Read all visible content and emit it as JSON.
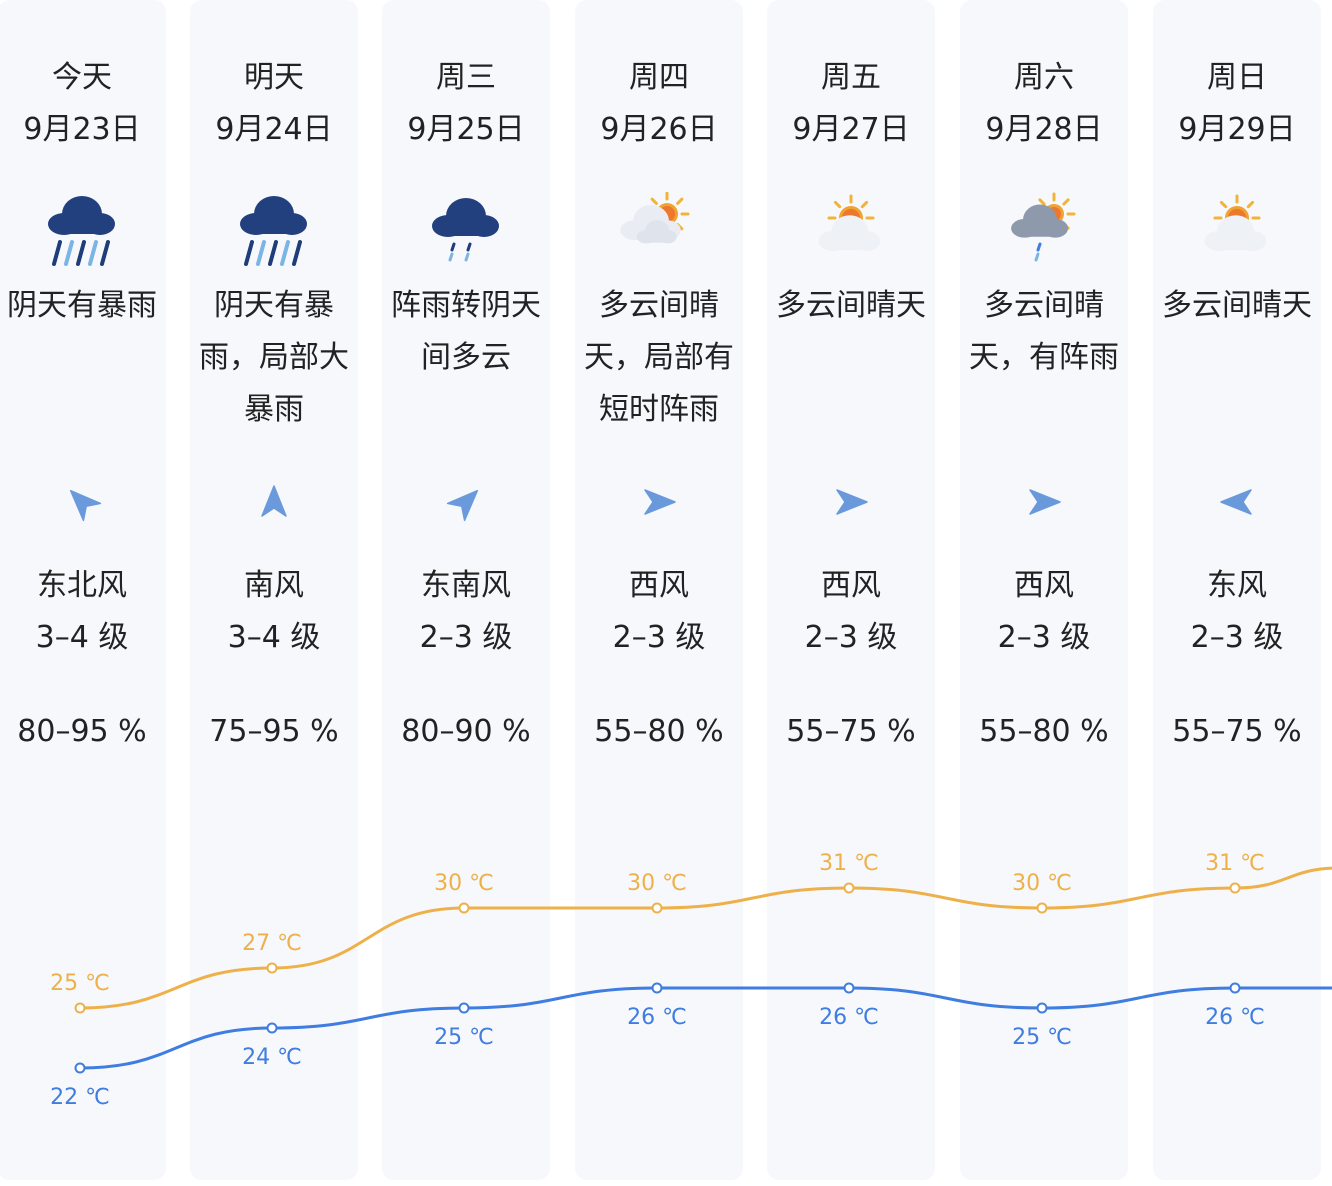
{
  "colors": {
    "high": "#eeb14a",
    "low": "#3f7de0",
    "card": "#f6f8fc",
    "arrow": "#5b8fd8"
  },
  "days": [
    {
      "weekday": "今天",
      "date": "9月23日",
      "icon": "heavy-rain-icon",
      "desc": "阴天有暴雨",
      "wind_dir": "东北风",
      "wind_level": "3–4 级",
      "humidity": "80–95 %",
      "arrow_rotation_deg": 225
    },
    {
      "weekday": "明天",
      "date": "9月24日",
      "icon": "heavy-rain-icon",
      "desc": "阴天有暴雨，局部大暴雨",
      "wind_dir": "南风",
      "wind_level": "3–4 级",
      "humidity": "75–95 %",
      "arrow_rotation_deg": 270
    },
    {
      "weekday": "周三",
      "date": "9月25日",
      "icon": "shower-icon",
      "desc": "阵雨转阴天间多云",
      "wind_dir": "东南风",
      "wind_level": "2–3 级",
      "humidity": "80–90 %",
      "arrow_rotation_deg": 315
    },
    {
      "weekday": "周四",
      "date": "9月26日",
      "icon": "partly-cloudy-icon",
      "desc": "多云间晴天，局部有短时阵雨",
      "wind_dir": "西风",
      "wind_level": "2–3 级",
      "humidity": "55–80 %",
      "arrow_rotation_deg": 0
    },
    {
      "weekday": "周五",
      "date": "9月27日",
      "icon": "sunny-cloudy-icon",
      "desc": "多云间晴天",
      "wind_dir": "西风",
      "wind_level": "2–3 级",
      "humidity": "55–75 %",
      "arrow_rotation_deg": 0
    },
    {
      "weekday": "周六",
      "date": "9月28日",
      "icon": "cloudy-shower-icon",
      "desc": "多云间晴天，有阵雨",
      "wind_dir": "西风",
      "wind_level": "2–3 级",
      "humidity": "55–80 %",
      "arrow_rotation_deg": 0
    },
    {
      "weekday": "周日",
      "date": "9月29日",
      "icon": "sunny-cloudy-icon",
      "desc": "多云间晴天",
      "wind_dir": "东风",
      "wind_level": "2–3 级",
      "humidity": "55–75 %",
      "arrow_rotation_deg": 180
    }
  ],
  "chart_data": {
    "type": "line",
    "x": [
      "今天",
      "明天",
      "周三",
      "周四",
      "周五",
      "周六",
      "周日"
    ],
    "series": [
      {
        "values": [
          25,
          27,
          30,
          30,
          31,
          30,
          31
        ],
        "trailing_value": 32
      },
      {
        "values": [
          22,
          24,
          25,
          26,
          26,
          25,
          26
        ],
        "trailing_value": 26
      }
    ],
    "labels_high": [
      "25 ℃",
      "27 ℃",
      "30 ℃",
      "30 ℃",
      "31 ℃",
      "30 ℃",
      "31 ℃"
    ],
    "labels_low": [
      "22 ℃",
      "24 ℃",
      "25 ℃",
      "26 ℃",
      "26 ℃",
      "25 ℃",
      "26 ℃"
    ],
    "unit": "℃"
  }
}
